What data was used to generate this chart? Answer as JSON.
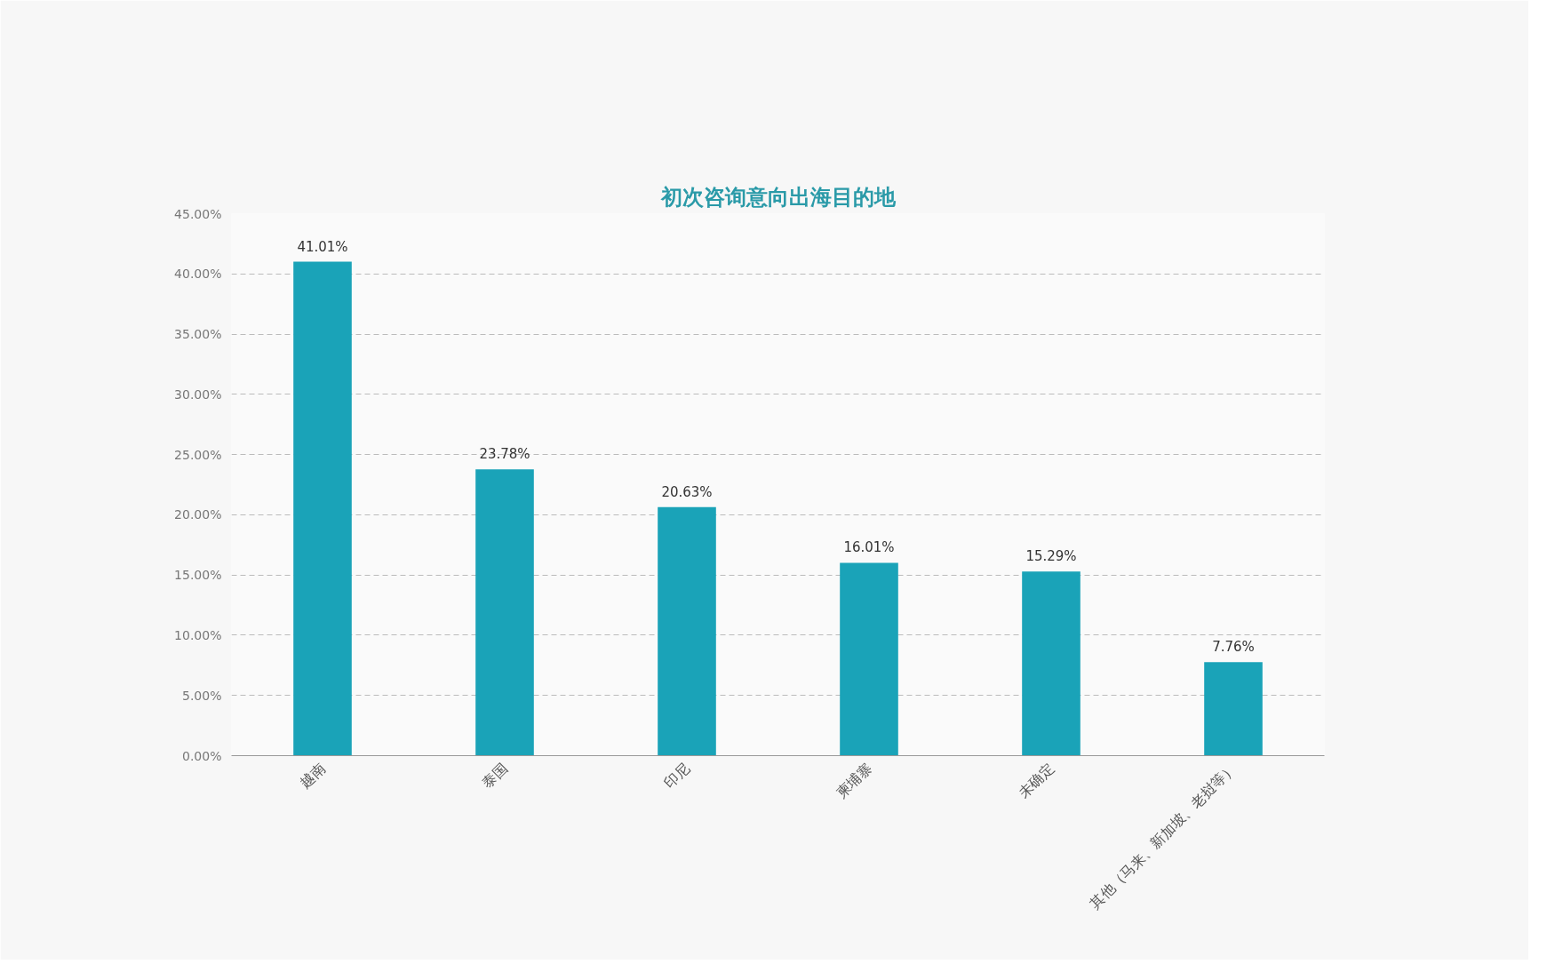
{
  "chart_data": {
    "type": "bar",
    "title": "初次咨询意向出海目的地",
    "categories": [
      "越南",
      "泰国",
      "印尼",
      "柬埔寨",
      "未确定",
      "其他（马来、新加坡、老挝等）"
    ],
    "values": [
      41.01,
      23.78,
      20.63,
      16.01,
      15.29,
      7.76
    ],
    "value_labels": [
      "41.01%",
      "23.78%",
      "20.63%",
      "16.01%",
      "15.29%",
      "7.76%"
    ],
    "color": "#1aa3b8",
    "ylim": [
      0,
      45
    ],
    "yticks": [
      {
        "value": 0,
        "label": "0.00%"
      },
      {
        "value": 5,
        "label": "5.00%"
      },
      {
        "value": 10,
        "label": "10.00%"
      },
      {
        "value": 15,
        "label": "15.00%"
      },
      {
        "value": 20,
        "label": "20.00%"
      },
      {
        "value": 25,
        "label": "25.00%"
      },
      {
        "value": 30,
        "label": "30.00%"
      },
      {
        "value": 35,
        "label": "35.00%"
      },
      {
        "value": 40,
        "label": "40.00%"
      },
      {
        "value": 45,
        "label": "45.00%"
      }
    ],
    "grid": "y"
  }
}
